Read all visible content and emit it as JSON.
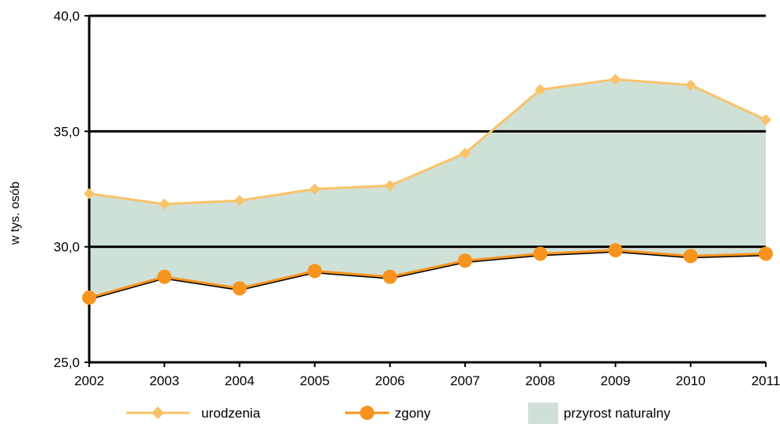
{
  "chart_data": {
    "type": "line",
    "x": [
      "2002",
      "2003",
      "2004",
      "2005",
      "2006",
      "2007",
      "2008",
      "2009",
      "2010",
      "2011"
    ],
    "ylabel": "w tys. osób",
    "ylim": [
      25.0,
      40.0
    ],
    "yticks": [
      "25,0",
      "30,0",
      "35,0",
      "40,0"
    ],
    "grid": "horizontal major lines",
    "legend_position": "bottom",
    "series": [
      {
        "name": "urodzenia",
        "values": [
          32.3,
          31.85,
          32.0,
          32.5,
          32.65,
          34.05,
          36.8,
          37.25,
          37.0,
          35.5
        ],
        "color": "#f9c36a",
        "marker": "diamond"
      },
      {
        "name": "zgony",
        "values": [
          27.8,
          28.7,
          28.2,
          28.95,
          28.7,
          29.4,
          29.7,
          29.85,
          29.6,
          29.7
        ],
        "color": "#f7941d",
        "marker": "circle"
      }
    ],
    "area": {
      "name": "przyrost naturalny",
      "color": "#cfe0d7",
      "between": [
        "zgony",
        "urodzenia"
      ]
    }
  }
}
